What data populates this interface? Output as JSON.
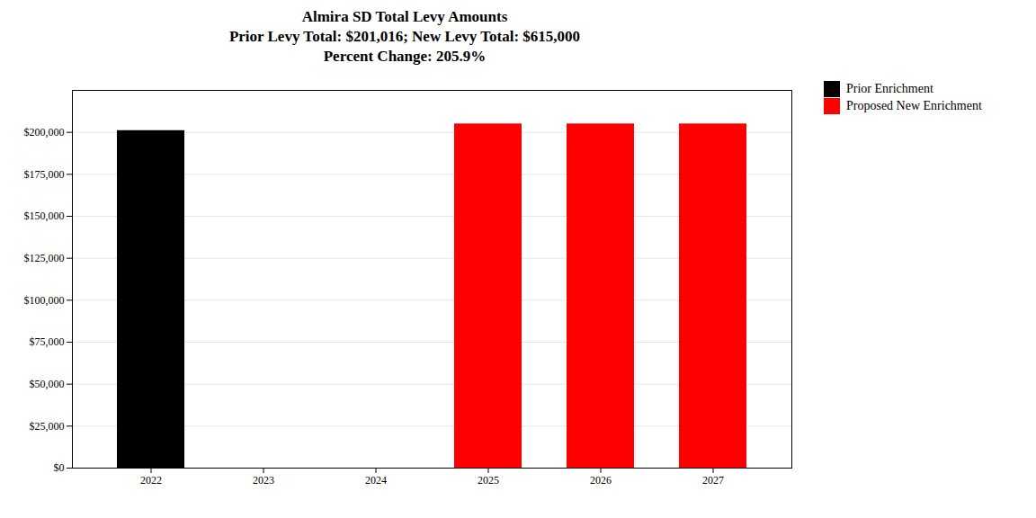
{
  "chart_data": {
    "type": "bar",
    "title": "Almira SD Total Levy Amounts\nPrior Levy Total:  $201,016; New Levy Total: $615,000\nPercent Change: 205.9%",
    "categories": [
      "2022",
      "2023",
      "2024",
      "2025",
      "2026",
      "2027"
    ],
    "series": [
      {
        "name": "Prior Enrichment",
        "color": "#000000",
        "values": [
          201016,
          0,
          0,
          null,
          null,
          null
        ]
      },
      {
        "name": "Proposed New Enrichment",
        "color": "#ff0000",
        "values": [
          null,
          null,
          null,
          205000,
          205000,
          205000
        ]
      }
    ],
    "ylim": [
      0,
      225000
    ],
    "yticks": [
      {
        "value": 0,
        "label": "$0"
      },
      {
        "value": 25000,
        "label": "$25,000"
      },
      {
        "value": 50000,
        "label": "$50,000"
      },
      {
        "value": 75000,
        "label": "$75,000"
      },
      {
        "value": 100000,
        "label": "$100,000"
      },
      {
        "value": 125000,
        "label": "$125,000"
      },
      {
        "value": 150000,
        "label": "$150,000"
      },
      {
        "value": 175000,
        "label": "$175,000"
      },
      {
        "value": 200000,
        "label": "$200,000"
      }
    ],
    "grid": true,
    "legend": "right"
  }
}
